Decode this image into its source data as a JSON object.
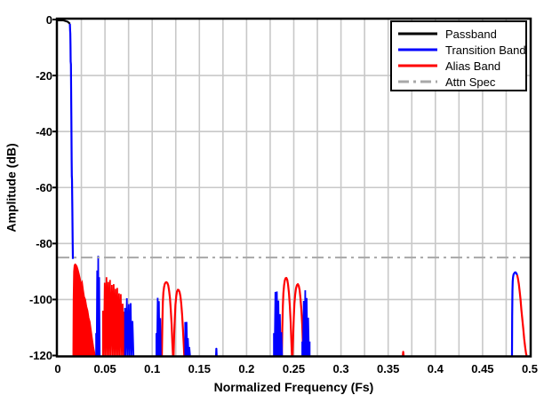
{
  "chart_data": {
    "type": "line",
    "title": "",
    "xlabel": "Normalized Frequency (Fs)",
    "ylabel": "Amplitude (dB)",
    "xlim": [
      0,
      0.5
    ],
    "ylim": [
      -120,
      0
    ],
    "xtick_values": [
      0,
      0.05,
      0.1,
      0.15,
      0.2,
      0.25,
      0.3,
      0.35,
      0.4,
      0.45,
      0.5
    ],
    "xtick_labels": [
      "0",
      "0.05",
      "0.1",
      "0.15",
      "0.2",
      "0.25",
      "0.3",
      "0.35",
      "0.4",
      "0.45",
      "0.5"
    ],
    "ytick_values": [
      0,
      -20,
      -40,
      -60,
      -80,
      -100,
      -120
    ],
    "ytick_labels": [
      "0",
      "-20",
      "-40",
      "-60",
      "-80",
      "-100",
      "-120"
    ],
    "x_minor_grid_step": 0.025,
    "grid": "on",
    "grid_color": "#c8c8c8",
    "frame_color": "#000000",
    "attn_spec_db": -85,
    "legend": {
      "position": "top-right",
      "entries": [
        {
          "label": "Passband",
          "color": "#000000",
          "style": "solid"
        },
        {
          "label": "Transition Band",
          "color": "#0000ff",
          "style": "solid"
        },
        {
          "label": "Alias Band",
          "color": "#ff0000",
          "style": "solid"
        },
        {
          "label": "Attn Spec",
          "color": "#a8a8a8",
          "style": "dashdot"
        }
      ]
    },
    "series": [
      {
        "name": "Alias Band",
        "color": "#ff0000",
        "segments": [
          {
            "type": "area",
            "floor": -120,
            "envelope": [
              [
                0.0163,
                -118
              ],
              [
                0.0166,
                -100
              ],
              [
                0.017,
                -90
              ],
              [
                0.0176,
                -87.8
              ],
              [
                0.0184,
                -87.4
              ],
              [
                0.0192,
                -87.6
              ],
              [
                0.0202,
                -88.2
              ],
              [
                0.0213,
                -89.3
              ],
              [
                0.0224,
                -90.8
              ],
              [
                0.0236,
                -92.6
              ],
              [
                0.0248,
                -94.6
              ],
              [
                0.0258,
                -93.8
              ],
              [
                0.0268,
                -96.5
              ],
              [
                0.028,
                -99
              ],
              [
                0.0292,
                -100
              ],
              [
                0.0304,
                -102.5
              ],
              [
                0.0316,
                -104
              ],
              [
                0.0328,
                -106.5
              ],
              [
                0.034,
                -108
              ],
              [
                0.0352,
                -111
              ],
              [
                0.0364,
                -114
              ],
              [
                0.0378,
                -117
              ],
              [
                0.0392,
                -119.5
              ],
              [
                0.0402,
                -120
              ]
            ]
          },
          {
            "type": "comb",
            "spacing": 0.0019,
            "floor": -120,
            "envelope": [
              [
                0.0478,
                -104
              ],
              [
                0.0489,
                -97
              ],
              [
                0.0501,
                -92.5
              ],
              [
                0.0512,
                -91.6
              ],
              [
                0.0524,
                -92.8
              ],
              [
                0.0536,
                -93.8
              ],
              [
                0.0548,
                -92.8
              ],
              [
                0.0561,
                -93.3
              ],
              [
                0.0573,
                -94.8
              ],
              [
                0.0586,
                -93.8
              ],
              [
                0.0598,
                -95.2
              ],
              [
                0.0611,
                -96.2
              ],
              [
                0.0623,
                -94.8
              ],
              [
                0.0636,
                -96.8
              ],
              [
                0.0649,
                -97.8
              ],
              [
                0.0661,
                -96.8
              ],
              [
                0.0674,
                -99.2
              ],
              [
                0.0687,
                -101.5
              ],
              [
                0.07,
                -103.5
              ],
              [
                0.0711,
                -105
              ]
            ]
          },
          {
            "type": "line",
            "points": [
              [
                0.1103,
                -120
              ],
              [
                0.1108,
                -108
              ],
              [
                0.1113,
                -101
              ],
              [
                0.1119,
                -97.5
              ],
              [
                0.1126,
                -95.5
              ],
              [
                0.1134,
                -94.4
              ],
              [
                0.1143,
                -93.9
              ],
              [
                0.1152,
                -93.8
              ],
              [
                0.1161,
                -94.1
              ],
              [
                0.117,
                -95
              ],
              [
                0.1179,
                -96.8
              ],
              [
                0.1188,
                -99.5
              ],
              [
                0.1197,
                -103.5
              ],
              [
                0.1206,
                -109
              ],
              [
                0.1214,
                -115.5
              ],
              [
                0.122,
                -120
              ]
            ]
          },
          {
            "type": "line",
            "points": [
              [
                0.1227,
                -120
              ],
              [
                0.1233,
                -113
              ],
              [
                0.124,
                -106.5
              ],
              [
                0.1247,
                -101.8
              ],
              [
                0.1255,
                -98.8
              ],
              [
                0.1263,
                -97.2
              ],
              [
                0.1272,
                -96.5
              ],
              [
                0.1281,
                -96.6
              ],
              [
                0.129,
                -97.3
              ],
              [
                0.1299,
                -98.9
              ],
              [
                0.1308,
                -101.5
              ],
              [
                0.1317,
                -105.5
              ],
              [
                0.1326,
                -110.5
              ],
              [
                0.1334,
                -116
              ],
              [
                0.134,
                -120
              ]
            ]
          },
          {
            "type": "line",
            "points": [
              [
                0.2374,
                -120
              ],
              [
                0.2379,
                -110
              ],
              [
                0.2384,
                -102.5
              ],
              [
                0.239,
                -97.8
              ],
              [
                0.2397,
                -94.9
              ],
              [
                0.2405,
                -93.2
              ],
              [
                0.2413,
                -92.4
              ],
              [
                0.2422,
                -92.3
              ],
              [
                0.2431,
                -93
              ],
              [
                0.244,
                -94.8
              ],
              [
                0.2449,
                -97.8
              ],
              [
                0.2458,
                -102
              ],
              [
                0.2467,
                -108
              ],
              [
                0.2475,
                -115
              ],
              [
                0.248,
                -120
              ]
            ]
          },
          {
            "type": "line",
            "points": [
              [
                0.2487,
                -120
              ],
              [
                0.2493,
                -113
              ],
              [
                0.25,
                -106.5
              ],
              [
                0.2507,
                -101.5
              ],
              [
                0.2515,
                -98.2
              ],
              [
                0.2524,
                -96
              ],
              [
                0.2533,
                -94.9
              ],
              [
                0.2543,
                -94.5
              ],
              [
                0.2553,
                -95.1
              ],
              [
                0.2562,
                -96.7
              ],
              [
                0.2571,
                -99.5
              ],
              [
                0.258,
                -103.5
              ],
              [
                0.2589,
                -109
              ],
              [
                0.2597,
                -116
              ],
              [
                0.2601,
                -120
              ]
            ]
          },
          {
            "type": "line",
            "points": [
              [
                0.3655,
                -120
              ],
              [
                0.3659,
                -118.7
              ],
              [
                0.3663,
                -120
              ]
            ]
          },
          {
            "type": "line",
            "points": [
              [
                0.4866,
                -91.2
              ],
              [
                0.4875,
                -92.5
              ],
              [
                0.4884,
                -94.5
              ],
              [
                0.4893,
                -97
              ],
              [
                0.4902,
                -100
              ],
              [
                0.4911,
                -103.5
              ],
              [
                0.4921,
                -107
              ],
              [
                0.4931,
                -110.5
              ],
              [
                0.4941,
                -114
              ],
              [
                0.4951,
                -117
              ],
              [
                0.4961,
                -119.5
              ],
              [
                0.4967,
                -120
              ]
            ]
          }
        ]
      },
      {
        "name": "Transition Band",
        "color": "#0000ff",
        "segments": [
          {
            "type": "line",
            "points": [
              [
                0.0128,
                -1.5
              ],
              [
                0.0131,
                -4
              ],
              [
                0.0133,
                -5
              ],
              [
                0.0135,
                -9
              ],
              [
                0.0137,
                -15
              ],
              [
                0.0139,
                -16
              ],
              [
                0.0141,
                -24
              ],
              [
                0.0144,
                -36
              ],
              [
                0.0147,
                -50
              ],
              [
                0.0149,
                -56
              ],
              [
                0.0151,
                -57
              ],
              [
                0.0154,
                -68
              ],
              [
                0.0157,
                -78
              ],
              [
                0.016,
                -85.5
              ]
            ]
          },
          {
            "type": "comb",
            "spacing": 0.0011,
            "floor": -120,
            "envelope": [
              [
                0.0406,
                -112
              ],
              [
                0.0412,
                -98
              ],
              [
                0.0418,
                -88
              ],
              [
                0.0425,
                -84.6
              ],
              [
                0.043,
                -84.3
              ],
              [
                0.0436,
                -89
              ],
              [
                0.0442,
                -95
              ],
              [
                0.0448,
                -106
              ]
            ]
          },
          {
            "type": "comb",
            "spacing": 0.002,
            "floor": -120,
            "envelope": [
              [
                0.0712,
                -103
              ],
              [
                0.0722,
                -100
              ],
              [
                0.0733,
                -99.5
              ],
              [
                0.0746,
                -101
              ],
              [
                0.076,
                -102.5
              ],
              [
                0.0775,
                -101
              ],
              [
                0.0788,
                -106
              ],
              [
                0.0802,
                -112
              ]
            ]
          },
          {
            "type": "comb",
            "spacing": 0.0014,
            "floor": -120,
            "envelope": [
              [
                0.1044,
                -112
              ],
              [
                0.1051,
                -103
              ],
              [
                0.1058,
                -99.4
              ],
              [
                0.1066,
                -99.9
              ],
              [
                0.1074,
                -100.8
              ],
              [
                0.1082,
                -104
              ],
              [
                0.1091,
                -110
              ]
            ]
          },
          {
            "type": "comb",
            "spacing": 0.0015,
            "floor": -120,
            "envelope": [
              [
                0.1349,
                -108
              ],
              [
                0.1356,
                -106
              ],
              [
                0.1364,
                -108
              ],
              [
                0.1373,
                -112
              ],
              [
                0.1383,
                -115
              ],
              [
                0.1394,
                -117
              ],
              [
                0.1407,
                -119
              ]
            ]
          },
          {
            "type": "line",
            "points": [
              [
                0.1677,
                -120
              ],
              [
                0.168,
                -117.6
              ],
              [
                0.1683,
                -120
              ]
            ]
          },
          {
            "type": "comb",
            "spacing": 0.0016,
            "floor": -120,
            "envelope": [
              [
                0.2289,
                -112
              ],
              [
                0.2296,
                -102
              ],
              [
                0.2305,
                -97.3
              ],
              [
                0.2314,
                -96.6
              ],
              [
                0.2323,
                -97.3
              ],
              [
                0.2332,
                -99
              ],
              [
                0.2341,
                -101.5
              ],
              [
                0.2351,
                -104.5
              ],
              [
                0.2362,
                -108.5
              ],
              [
                0.2373,
                -113.5
              ],
              [
                0.2384,
                -118
              ]
            ]
          },
          {
            "type": "comb",
            "spacing": 0.0016,
            "floor": -120,
            "envelope": [
              [
                0.2589,
                -115
              ],
              [
                0.2597,
                -107
              ],
              [
                0.2605,
                -100.5
              ],
              [
                0.2613,
                -97.5
              ],
              [
                0.2621,
                -96.7
              ],
              [
                0.263,
                -97.6
              ],
              [
                0.2639,
                -100
              ],
              [
                0.2648,
                -104
              ],
              [
                0.2658,
                -109
              ],
              [
                0.2669,
                -115
              ]
            ]
          },
          {
            "type": "line",
            "points": [
              [
                0.4812,
                -120
              ],
              [
                0.4814,
                -106
              ],
              [
                0.4816,
                -97
              ],
              [
                0.4819,
                -93.5
              ],
              [
                0.4823,
                -92
              ],
              [
                0.4828,
                -91.1
              ],
              [
                0.4834,
                -90.7
              ],
              [
                0.4841,
                -90.4
              ],
              [
                0.4849,
                -90.3
              ],
              [
                0.4857,
                -90.6
              ],
              [
                0.4866,
                -91.2
              ]
            ]
          }
        ]
      },
      {
        "name": "Passband",
        "color": "#000000",
        "segments": [
          {
            "type": "line",
            "points": [
              [
                0,
                -0.3
              ],
              [
                0.006,
                -0.3
              ],
              [
                0.0105,
                -0.8
              ],
              [
                0.0128,
                -1.5
              ]
            ]
          }
        ]
      },
      {
        "name": "Attn Spec",
        "color": "#a8a8a8",
        "style": "dashdot",
        "segments": [
          {
            "type": "hline",
            "value": -85
          }
        ]
      }
    ]
  }
}
